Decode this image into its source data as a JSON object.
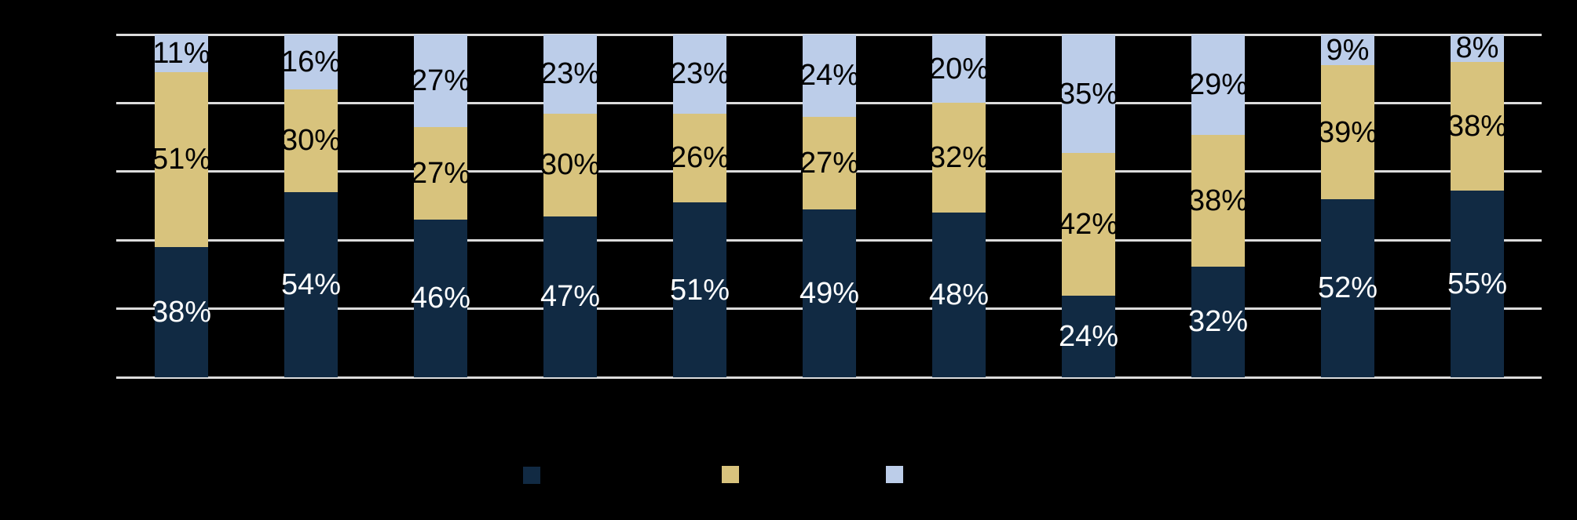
{
  "background": "#000000",
  "grid": {
    "color": "#DCDCDC",
    "line_count": 6
  },
  "chart_data": {
    "type": "bar",
    "stacked": true,
    "orientation": "vertical",
    "bar_count": 11,
    "ylim": [
      0,
      100
    ],
    "gridline_interval_pct": 20,
    "grid_on": true,
    "legend_position": "bottom",
    "title": "",
    "xlabel": "",
    "ylabel": "",
    "series": [
      {
        "name": "navy",
        "color": "#112A43",
        "label_color": "#FFFFFF",
        "values": [
          38,
          54,
          46,
          47,
          51,
          49,
          48,
          24,
          32,
          52,
          55
        ],
        "labels": [
          "38%",
          "54%",
          "46%",
          "47%",
          "51%",
          "49%",
          "48%",
          "24%",
          "32%",
          "52%",
          "55%"
        ]
      },
      {
        "name": "tan",
        "color": "#D8C37D",
        "label_color": "#000000",
        "values": [
          51,
          30,
          27,
          30,
          26,
          27,
          32,
          42,
          38,
          39,
          38
        ],
        "labels": [
          "51%",
          "30%",
          "27%",
          "30%",
          "26%",
          "27%",
          "32%",
          "42%",
          "38%",
          "39%",
          "38%"
        ]
      },
      {
        "name": "light-blue",
        "color": "#BCCDE9",
        "label_color": "#000000",
        "values": [
          11,
          16,
          27,
          23,
          23,
          24,
          20,
          35,
          29,
          9,
          8
        ],
        "labels": [
          "11%",
          "16%",
          "27%",
          "23%",
          "23%",
          "24%",
          "20%",
          "35%",
          "29%",
          "9%",
          "8%"
        ]
      }
    ]
  },
  "legend": {
    "swatches": [
      {
        "name": "navy",
        "color": "#112A43"
      },
      {
        "name": "tan",
        "color": "#D8C37D"
      },
      {
        "name": "light-blue",
        "color": "#BCCDE9"
      }
    ]
  }
}
